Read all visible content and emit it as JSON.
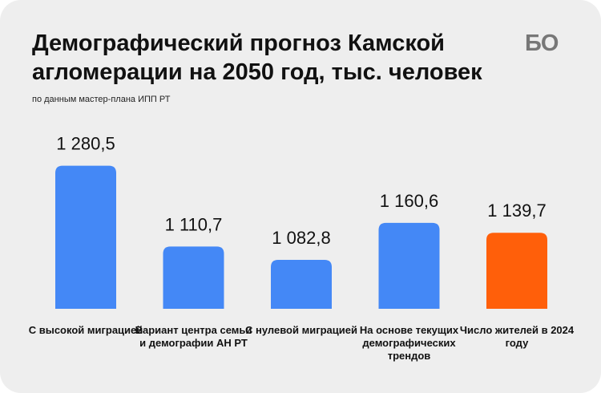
{
  "header": {
    "title": "Демографический прогноз Камской агломерации на 2050 год, тыс. человек",
    "subtitle": "по данным мастер-плана ИПП РТ",
    "logo": "БО"
  },
  "colors": {
    "forecast": "#4488f6",
    "current": "#ff5f0a",
    "background": "#eeeeee"
  },
  "chart_data": {
    "type": "bar",
    "title": "Демографический прогноз Камской агломерации на 2050 год, тыс. человек",
    "categories": [
      "С высокой миграцией",
      "Вариант центра семьи и демографии АН РТ",
      "С нулевой миграцией",
      "На основе текущих демографических трендов",
      "Число жителей в 2024 году"
    ],
    "values": [
      1280.5,
      1110.7,
      1082.8,
      1160.6,
      1139.7
    ],
    "value_labels": [
      "1 280,5",
      "1 110,7",
      "1 082,8",
      "1 160,6",
      "1 139,7"
    ],
    "bar_colors": [
      "#4488f6",
      "#4488f6",
      "#4488f6",
      "#4488f6",
      "#ff5f0a"
    ],
    "xlabel": "",
    "ylabel": "",
    "grid": false,
    "legend": "none"
  }
}
